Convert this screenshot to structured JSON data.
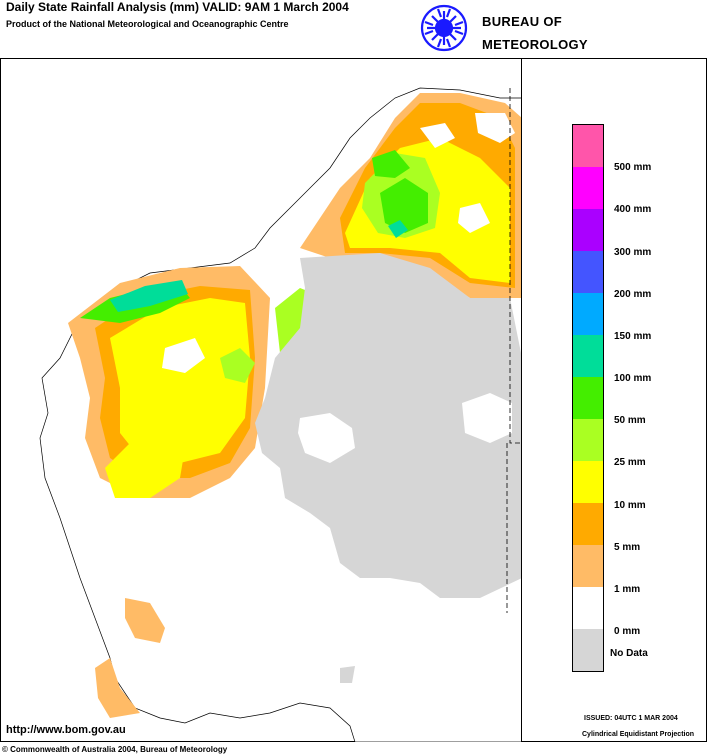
{
  "header": {
    "title": "Daily State Rainfall Analysis (mm)  VALID: 9AM  1 March 2004",
    "subtitle": "Product of the National Meteorological and Oceanographic Centre",
    "agency_line1": "BUREAU OF",
    "agency_line2": "METEOROLOGY",
    "logo_icon": "bom-swirl-icon",
    "logo_color": "#1a1aff"
  },
  "legend": {
    "items": [
      {
        "label": "500 mm",
        "color": "#ff55aa"
      },
      {
        "label": "400 mm",
        "color": "#ff00ff"
      },
      {
        "label": "300 mm",
        "color": "#aa00ff"
      },
      {
        "label": "200 mm",
        "color": "#4455ff"
      },
      {
        "label": "150 mm",
        "color": "#00aaff"
      },
      {
        "label": "100 mm",
        "color": "#00dd99"
      },
      {
        "label": "50 mm",
        "color": "#44ee00"
      },
      {
        "label": "25 mm",
        "color": "#aaff22"
      },
      {
        "label": "10 mm",
        "color": "#ffff00"
      },
      {
        "label": "5 mm",
        "color": "#ffaa00"
      },
      {
        "label": "1 mm",
        "color": "#ffbb66"
      },
      {
        "label": "0 mm",
        "color": "#ffffff"
      },
      {
        "label": "No Data",
        "color": "#d6d6d6"
      }
    ]
  },
  "footer": {
    "url": "http://www.bom.gov.au",
    "copyright": "© Commonwealth of Australia 2004, Bureau of Meteorology",
    "issued": "ISSUED: 04UTC  1 MAR 2004",
    "projection": "Cylindrical Equidistant Projection"
  }
}
